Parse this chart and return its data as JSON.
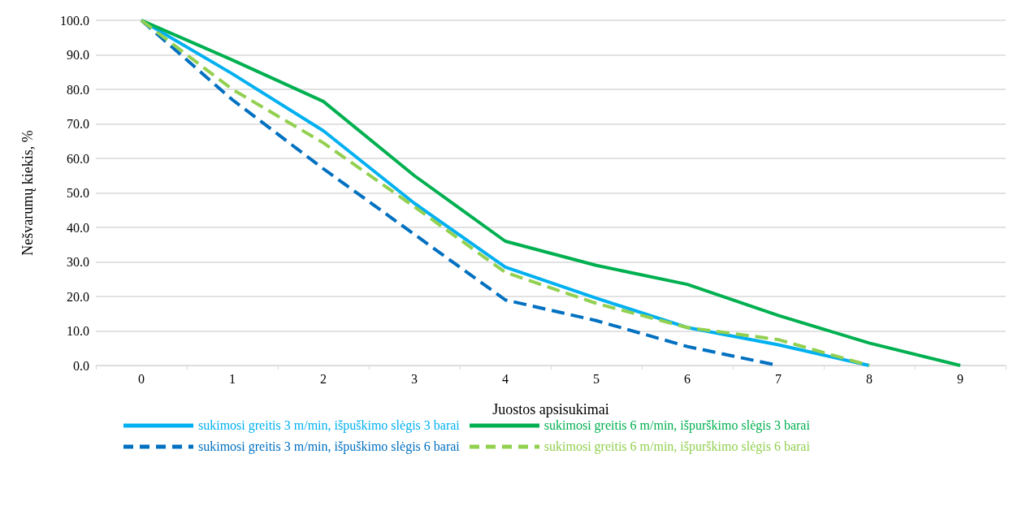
{
  "chart_data": {
    "type": "line",
    "xlabel": "Juostos apsisukimai",
    "ylabel": "Nešvarumų kiekis, %",
    "categories": [
      "0",
      "1",
      "2",
      "3",
      "4",
      "5",
      "6",
      "7",
      "8",
      "9"
    ],
    "ylim": [
      0,
      100
    ],
    "yticks": [
      {
        "value": 0,
        "label": "0.0"
      },
      {
        "value": 10,
        "label": "10.0"
      },
      {
        "value": 20,
        "label": "20.0"
      },
      {
        "value": 30,
        "label": "30.0"
      },
      {
        "value": 40,
        "label": "40.0"
      },
      {
        "value": 50,
        "label": "50.0"
      },
      {
        "value": 60,
        "label": "60.0"
      },
      {
        "value": 70,
        "label": "70.0"
      },
      {
        "value": 80,
        "label": "80.0"
      },
      {
        "value": 90,
        "label": "90.0"
      },
      {
        "value": 100,
        "label": "100.0"
      }
    ],
    "grid": "y",
    "legend": "bottom",
    "marker": "none",
    "series": [
      {
        "name": "sukimosi greitis 3 m/min, išpuškimo slėgis 3 barai",
        "color": "#00b0f0",
        "line_style": "solid",
        "values": [
          100,
          84.5,
          68,
          47,
          28.5,
          19.5,
          11,
          6,
          0,
          null
        ]
      },
      {
        "name": "sukimosi greitis 6 m/min, išpurškimo slėgis 3 barai",
        "color": "#00b050",
        "line_style": "solid",
        "values": [
          100,
          88.5,
          76.5,
          55,
          36,
          29,
          23.5,
          14.5,
          6.5,
          0
        ]
      },
      {
        "name": "sukimosi greitis 3 m/min, išpuškimo slėgis 6 barai",
        "color": "#0070c0",
        "line_style": "dashed",
        "values": [
          100,
          77,
          57,
          38,
          19,
          13,
          5.5,
          0,
          null,
          null
        ]
      },
      {
        "name": "sukimosi greitis 6 m/min, išpurškimo slėgis 6 barai",
        "color": "#92d050",
        "line_style": "dashed",
        "values": [
          100,
          80,
          64.5,
          46,
          27,
          18,
          11,
          7.5,
          0,
          null
        ]
      }
    ]
  }
}
